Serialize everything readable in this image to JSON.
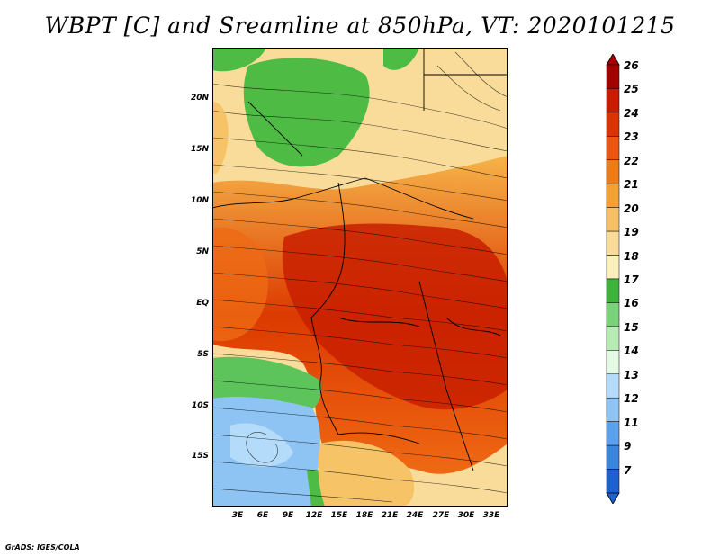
{
  "title": "WBPT [C] and Sreamline at 850hPa, VT: 2020101215",
  "credit": "GrADS: IGES/COLA",
  "lat_labels": [
    "20N",
    "15N",
    "10N",
    "5N",
    "EQ",
    "5S",
    "10S",
    "15S"
  ],
  "lon_labels": [
    "3E",
    "6E",
    "9E",
    "12E",
    "15E",
    "18E",
    "21E",
    "24E",
    "27E",
    "30E",
    "33E"
  ],
  "colorbar": {
    "labels": [
      "26",
      "25",
      "24",
      "23",
      "22",
      "21",
      "20",
      "19",
      "18",
      "17",
      "16",
      "15",
      "14",
      "13",
      "12",
      "11",
      "9",
      "7"
    ],
    "colors": [
      "#a50000",
      "#cc1a00",
      "#dd3300",
      "#ee5511",
      "#f07a14",
      "#f3a030",
      "#f7c065",
      "#f9dc9a",
      "#faf0bc",
      "#3cb43c",
      "#78d278",
      "#b6ecb4",
      "#e4fae4",
      "#b4dcfa",
      "#8ec4f4",
      "#5aa0ea",
      "#3a84de",
      "#1e60d0"
    ]
  }
}
